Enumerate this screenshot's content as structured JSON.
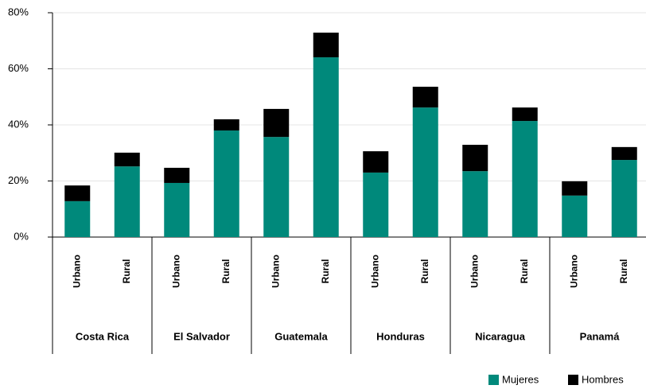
{
  "chart_data": {
    "type": "stacked-bar",
    "categories": [
      "Urbano",
      "Rural",
      "Urbano",
      "Rural",
      "Urbano",
      "Rural",
      "Urbano",
      "Rural",
      "Urbano",
      "Rural",
      "Urbano",
      "Rural"
    ],
    "groups": [
      "Costa Rica",
      "El Salvador",
      "Guatemala",
      "Honduras",
      "Nicaragua",
      "Panamá"
    ],
    "series": [
      {
        "name": "Mujeres",
        "color": "#00897b",
        "values": [
          12.8,
          25.2,
          19.3,
          38.0,
          35.7,
          64.1,
          23.0,
          46.2,
          23.5,
          41.4,
          14.8,
          27.5
        ]
      },
      {
        "name": "Hombres",
        "color": "#000000",
        "values": [
          5.6,
          4.9,
          5.4,
          4.0,
          10.0,
          8.8,
          7.6,
          7.4,
          9.4,
          4.8,
          5.1,
          4.6
        ]
      }
    ],
    "ylim": [
      0,
      80
    ],
    "yticks": [
      {
        "value": 0,
        "label": "0%"
      },
      {
        "value": 20,
        "label": "20%"
      },
      {
        "value": 40,
        "label": "40%"
      },
      {
        "value": 60,
        "label": "60%"
      },
      {
        "value": 80,
        "label": "80%"
      }
    ],
    "grid": true,
    "legend": "bottom-right"
  }
}
